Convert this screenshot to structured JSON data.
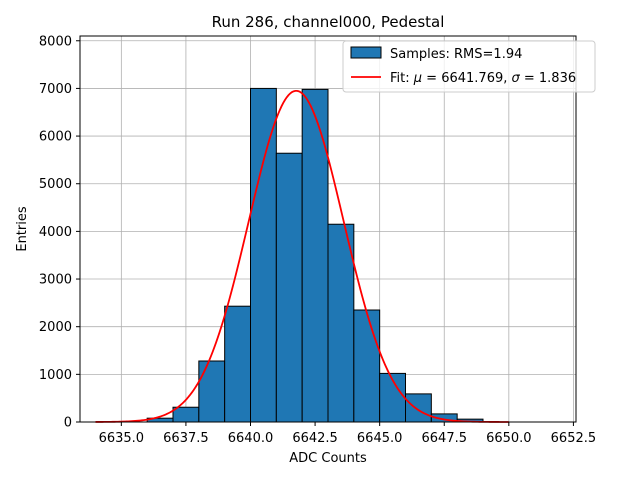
{
  "chart_data": {
    "type": "bar",
    "title": "Run 286, channel000, Pedestal",
    "xlabel": "ADC Counts",
    "ylabel": "Entries",
    "xlim": [
      6633.4,
      6652.6
    ],
    "ylim": [
      0,
      8100
    ],
    "x_ticks": [
      6635.0,
      6637.5,
      6640.0,
      6642.5,
      6645.0,
      6647.5,
      6650.0,
      6652.5
    ],
    "x_tick_labels": [
      "6635.0",
      "6637.5",
      "6640.0",
      "6642.5",
      "6645.0",
      "6647.5",
      "6650.0",
      "6652.5"
    ],
    "y_ticks": [
      0,
      1000,
      2000,
      3000,
      4000,
      5000,
      6000,
      7000,
      8000
    ],
    "y_tick_labels": [
      "0",
      "1000",
      "2000",
      "3000",
      "4000",
      "5000",
      "6000",
      "7000",
      "8000"
    ],
    "grid": true,
    "legend_position": "top-right",
    "series": [
      {
        "name": "Samples: RMS=1.94",
        "kind": "histogram",
        "color": "#1f77b4",
        "bin_edges": [
          6636,
          6637,
          6638,
          6639,
          6640,
          6641,
          6642,
          6643,
          6644,
          6645,
          6646,
          6647,
          6648,
          6649
        ],
        "values": [
          80,
          310,
          1280,
          2430,
          7000,
          5640,
          6980,
          4150,
          2350,
          1020,
          590,
          170,
          60
        ]
      },
      {
        "name": "Fit: μ = 6641.769, σ = 1.836",
        "name_parts": [
          "Fit: ",
          "μ",
          " = 6641.769, ",
          "σ",
          " = 1.836"
        ],
        "kind": "gaussian_line",
        "color": "#ff0000",
        "mu": 6641.769,
        "sigma": 1.836,
        "amplitude": 6950,
        "x_range": [
          6634,
          6650
        ]
      }
    ]
  }
}
